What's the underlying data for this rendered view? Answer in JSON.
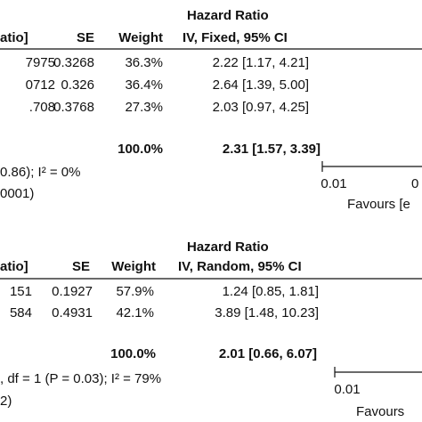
{
  "panels": [
    {
      "title": "Hazard Ratio",
      "columns": [
        "atio]",
        "SE",
        "Weight",
        "IV, Fixed, 95% CI"
      ],
      "rows": [
        [
          "7975",
          "0.3268",
          "36.3%",
          "2.22 [1.17, 4.21]"
        ],
        [
          "0712",
          "0.326",
          "36.4%",
          "2.64 [1.39, 5.00]"
        ],
        [
          ".708",
          "0.3768",
          "27.3%",
          "2.03 [0.97, 4.25]"
        ]
      ],
      "total": [
        "100.0%",
        "2.31 [1.57, 3.39]"
      ],
      "notes": [
        "0.86); I² = 0%",
        "0001)"
      ],
      "axis_labels": [
        "0.01",
        "0"
      ],
      "favours": "Favours [e"
    },
    {
      "title": "Hazard Ratio",
      "columns": [
        "atio]",
        "SE",
        "Weight",
        "IV, Random, 95% CI"
      ],
      "rows": [
        [
          "151",
          "0.1927",
          "57.9%",
          "1.24 [0.85, 1.81]"
        ],
        [
          "584",
          "0.4931",
          "42.1%",
          "3.89 [1.48, 10.23]"
        ]
      ],
      "total": [
        "100.0%",
        "2.01 [0.66, 6.07]"
      ],
      "notes": [
        ", df = 1 (P = 0.03); I² = 79%",
        "2)"
      ],
      "axis_labels": [
        "0.01"
      ],
      "favours": "Favours"
    }
  ]
}
